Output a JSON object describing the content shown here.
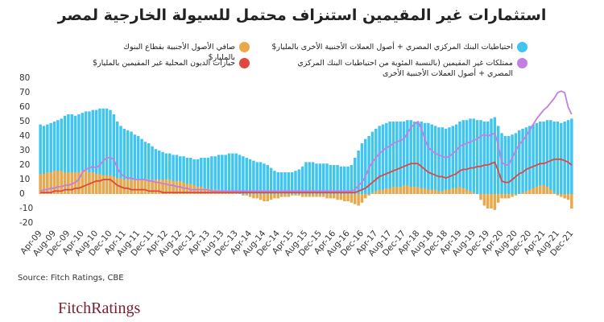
{
  "chart_data": {
    "type": "bar",
    "title": "استثمارات غير المقيمين استنزاف محتمل للسيولة الخارجية لمصر",
    "source": "Source: Fitch Ratings, CBE",
    "logo": "FitchRatings",
    "categories": [
      "Apr-09",
      null,
      null,
      null,
      "Aug-09",
      null,
      null,
      null,
      "Dec-09",
      null,
      null,
      null,
      "Apr-10",
      null,
      null,
      null,
      "Aug-10",
      null,
      null,
      null,
      "Dec-10",
      null,
      null,
      null,
      "Apr-11",
      null,
      null,
      null,
      "Aug-11",
      null,
      null,
      null,
      "Dec-11",
      null,
      null,
      null,
      "Apr-12",
      null,
      null,
      null,
      "Aug-12",
      null,
      null,
      null,
      "Dec-12",
      null,
      null,
      null,
      "Apr-13",
      null,
      null,
      null,
      "Aug-13",
      null,
      null,
      null,
      "Dec-13",
      null,
      null,
      null,
      "Apr-14",
      null,
      null,
      null,
      "Aug-14",
      null,
      null,
      null,
      "Dec-14",
      null,
      null,
      null,
      "Apr-15",
      null,
      null,
      null,
      "Aug-15",
      null,
      null,
      null,
      "Dec-15",
      null,
      null,
      null,
      "Apr-16",
      null,
      null,
      null,
      "Aug-16",
      null,
      null,
      null,
      "Dec-16",
      null,
      null,
      null,
      "Apr-17",
      null,
      null,
      null,
      "Aug-17",
      null,
      null,
      null,
      "Dec-17",
      null,
      null,
      null,
      "Apr-18",
      null,
      null,
      null,
      "Aug-18",
      null,
      null,
      null,
      "Dec-18",
      null,
      null,
      null,
      "Apr-19",
      null,
      null,
      null,
      "Aug-19",
      null,
      null,
      null,
      "Dec-19",
      null,
      null,
      null,
      "Apr-20",
      null,
      null,
      null,
      "Aug-20",
      null,
      null,
      null,
      "Dec-20",
      null,
      null,
      null,
      "Apr-21",
      null,
      null,
      null,
      "Aug-21",
      null,
      null,
      null,
      "Dec-21"
    ],
    "series": [
      {
        "name": "احتياطيات البنك المركزي المصري + أصول العملات الأجنبية الأخرى بالمليار$",
        "type": "bar",
        "color": "#3fc5ef",
        "values": [
          48,
          47,
          48,
          49,
          50,
          51,
          52,
          54,
          55,
          55,
          54,
          55,
          56,
          57,
          57,
          58,
          58,
          59,
          59,
          59,
          58,
          55,
          50,
          47,
          45,
          44,
          43,
          41,
          40,
          38,
          36,
          35,
          33,
          31,
          30,
          29,
          28,
          28,
          27,
          27,
          26,
          26,
          25,
          25,
          24,
          24,
          25,
          25,
          25,
          26,
          26,
          27,
          27,
          27,
          28,
          28,
          28,
          27,
          26,
          25,
          24,
          23,
          22,
          22,
          21,
          20,
          18,
          16,
          15,
          15,
          15,
          15,
          15,
          16,
          17,
          19,
          22,
          22,
          22,
          21,
          21,
          21,
          21,
          20,
          20,
          20,
          19,
          19,
          19,
          20,
          25,
          30,
          35,
          38,
          40,
          43,
          45,
          47,
          48,
          49,
          50,
          50,
          50,
          50,
          50,
          51,
          51,
          50,
          50,
          50,
          49,
          49,
          48,
          47,
          46,
          46,
          45,
          46,
          47,
          48,
          50,
          51,
          51,
          52,
          52,
          51,
          51,
          50,
          50,
          52,
          53,
          47,
          42,
          40,
          40,
          41,
          42,
          44,
          45,
          46,
          47,
          48,
          49,
          50,
          50,
          51,
          51,
          50,
          50,
          49,
          50,
          51,
          52
        ]
      },
      {
        "name": "صافي الأصول الأجنبية بقطاع البنوك بالمليار$",
        "type": "bar",
        "color": "#e9a94b",
        "values": [
          14,
          14,
          15,
          15,
          16,
          16,
          16,
          15,
          15,
          15,
          15,
          15,
          16,
          16,
          15,
          15,
          14,
          14,
          13,
          13,
          13,
          12,
          11,
          11,
          10,
          10,
          10,
          10,
          10,
          10,
          10,
          10,
          10,
          10,
          10,
          10,
          10,
          10,
          9,
          9,
          9,
          8,
          7,
          7,
          6,
          5,
          5,
          4,
          4,
          3,
          3,
          3,
          2,
          2,
          2,
          1,
          1,
          0,
          -1,
          -1,
          -2,
          -3,
          -3,
          -4,
          -5,
          -5,
          -4,
          -3,
          -3,
          -2,
          -2,
          -2,
          -1,
          -1,
          -1,
          -2,
          -2,
          -2,
          -2,
          -2,
          -2,
          -2,
          -3,
          -3,
          -3,
          -4,
          -4,
          -5,
          -5,
          -6,
          -7,
          -8,
          -6,
          -3,
          -1,
          1,
          2,
          3,
          3,
          4,
          4,
          5,
          5,
          5,
          6,
          6,
          5,
          5,
          5,
          4,
          4,
          3,
          3,
          3,
          2,
          2,
          3,
          3,
          4,
          4,
          5,
          4,
          3,
          2,
          1,
          0,
          -4,
          -8,
          -10,
          -10,
          -11,
          -6,
          -3,
          -3,
          -3,
          -2,
          -1,
          0,
          1,
          2,
          3,
          4,
          5,
          6,
          6,
          5,
          3,
          1,
          -1,
          -2,
          -3,
          -4,
          -10
        ]
      },
      {
        "name": "حيازات الديون المحلية غير المقيمين بالمليار$",
        "type": "line",
        "color": "#e0473d",
        "values": [
          1,
          1,
          1,
          1,
          2,
          2,
          2,
          3,
          3,
          3,
          4,
          4,
          5,
          6,
          7,
          8,
          9,
          9,
          10,
          10,
          10,
          8,
          6,
          5,
          4,
          4,
          3,
          3,
          3,
          3,
          3,
          2,
          2,
          2,
          2,
          1,
          1,
          1,
          1,
          1,
          1,
          1,
          1,
          1,
          1,
          1,
          1,
          1,
          1,
          1,
          1,
          1,
          1,
          1,
          1,
          1,
          1,
          1,
          1,
          1,
          1,
          1,
          1,
          1,
          1,
          1,
          1,
          1,
          1,
          1,
          1,
          1,
          1,
          1,
          1,
          1,
          1,
          1,
          1,
          1,
          1,
          1,
          1,
          1,
          1,
          1,
          1,
          1,
          1,
          1,
          1,
          2,
          3,
          4,
          6,
          8,
          10,
          12,
          13,
          14,
          15,
          16,
          17,
          18,
          19,
          20,
          21,
          21,
          21,
          19,
          17,
          15,
          14,
          13,
          12,
          12,
          11,
          12,
          13,
          14,
          16,
          17,
          17,
          18,
          18,
          19,
          19,
          20,
          20,
          21,
          22,
          16,
          9,
          8,
          8,
          10,
          12,
          14,
          15,
          17,
          18,
          19,
          20,
          21,
          21,
          22,
          23,
          24,
          24,
          24,
          23,
          22,
          20
        ]
      },
      {
        "name": "ممتلكات غير المقيمين (بالنسبة المئوية من احتياطيات البنك المركزي المصري + أصول العملات الأجنبية الأخرى",
        "type": "line",
        "color": "#c27fe0",
        "values": [
          2,
          3,
          3,
          4,
          4,
          5,
          5,
          6,
          6,
          7,
          8,
          10,
          15,
          17,
          18,
          19,
          18,
          20,
          23,
          25,
          25,
          24,
          18,
          14,
          12,
          11,
          11,
          10,
          10,
          10,
          10,
          9,
          9,
          8,
          8,
          7,
          7,
          6,
          6,
          5,
          5,
          4,
          4,
          3,
          3,
          3,
          3,
          3,
          3,
          2,
          2,
          2,
          2,
          2,
          2,
          2,
          2,
          2,
          2,
          2,
          2,
          2,
          2,
          2,
          2,
          2,
          2,
          2,
          2,
          2,
          2,
          2,
          2,
          2,
          2,
          2,
          2,
          2,
          2,
          2,
          2,
          2,
          2,
          2,
          2,
          2,
          2,
          2,
          2,
          2,
          3,
          6,
          8,
          12,
          18,
          22,
          25,
          28,
          30,
          32,
          33,
          35,
          36,
          37,
          38,
          42,
          46,
          48,
          50,
          45,
          38,
          32,
          30,
          28,
          27,
          26,
          25,
          26,
          28,
          30,
          33,
          34,
          35,
          36,
          37,
          38,
          40,
          41,
          40,
          41,
          42,
          34,
          22,
          20,
          20,
          25,
          30,
          34,
          37,
          40,
          44,
          48,
          52,
          55,
          58,
          60,
          63,
          66,
          70,
          71,
          70,
          60,
          55
        ]
      }
    ],
    "ylim": [
      -20,
      80
    ],
    "yticks": [
      80,
      70,
      60,
      50,
      40,
      30,
      20,
      10,
      0,
      -10,
      -20
    ],
    "grid": false
  }
}
